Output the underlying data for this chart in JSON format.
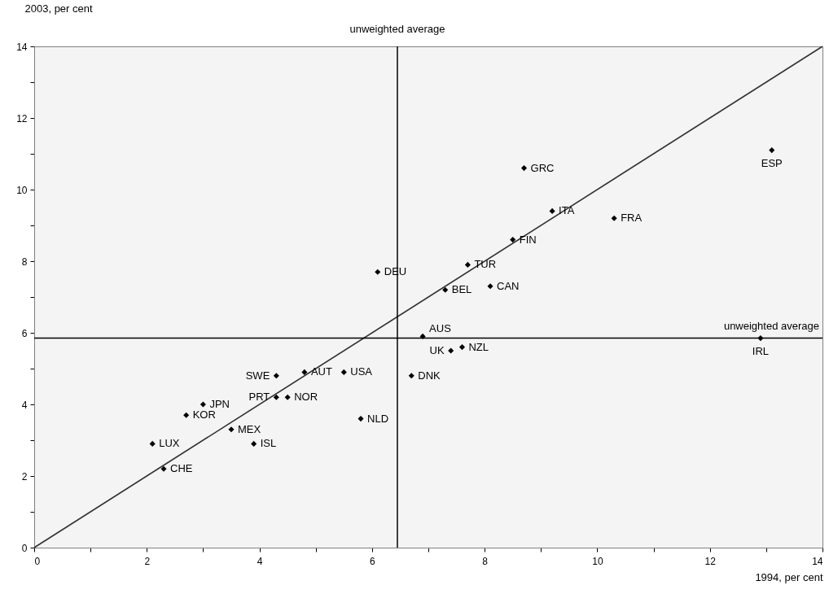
{
  "chart_data": {
    "type": "scatter",
    "xlabel": "1994, per cent",
    "ylabel": "2003, per cent",
    "xlim": [
      0,
      14
    ],
    "ylim": [
      0,
      14
    ],
    "xticks": [
      0,
      {
        "value": 1,
        "label": null
      },
      2,
      {
        "value": 3,
        "label": null
      },
      4,
      {
        "value": 5,
        "label": null
      },
      6,
      {
        "value": 7,
        "label": null
      },
      8,
      {
        "value": 9,
        "label": null
      },
      10,
      {
        "value": 11,
        "label": null
      },
      12,
      {
        "value": 13,
        "label": null
      },
      14
    ],
    "yticks": [
      0,
      {
        "value": 1,
        "label": null
      },
      2,
      {
        "value": 3,
        "label": null
      },
      4,
      {
        "value": 5,
        "label": null
      },
      6,
      {
        "value": 7,
        "label": null
      },
      8,
      {
        "value": 9,
        "label": null
      },
      10,
      {
        "value": 11,
        "label": null
      },
      12,
      {
        "value": 13,
        "label": null
      },
      14
    ],
    "grid": false,
    "series": [
      {
        "type": "scatter",
        "marker": "diamond",
        "color": "#000000",
        "x": [
          2.7,
          3.0,
          3.5,
          2.1,
          2.3,
          3.9,
          4.3,
          4.5,
          5.8,
          6.1,
          7.7,
          7.3,
          8.1,
          6.9,
          7.4,
          7.6,
          4.3,
          4.8,
          5.5,
          6.7,
          8.7,
          9.2,
          10.3,
          8.5,
          13.1,
          12.9
        ],
        "values": [
          3.7,
          4.0,
          3.3,
          2.9,
          2.2,
          2.9,
          4.2,
          4.2,
          3.6,
          7.7,
          7.9,
          7.2,
          7.3,
          5.9,
          5.5,
          5.6,
          4.8,
          4.9,
          4.9,
          4.8,
          10.6,
          9.4,
          9.2,
          8.6,
          11.1,
          5.85
        ]
      },
      {
        "type": "line",
        "color": "#333333",
        "x": [
          0,
          14
        ],
        "values": [
          0,
          14
        ]
      }
    ],
    "ref_lines": [
      {
        "axis": "x",
        "value": 6.45,
        "label": "unweighted average"
      },
      {
        "axis": "y",
        "value": 5.85,
        "label": "unweighted average"
      }
    ],
    "annotations": [
      {
        "text": "KOR",
        "x": 2.7,
        "y": 3.7
      },
      {
        "text": "JPN",
        "x": 3.0,
        "y": 4.0
      },
      {
        "text": "MEX",
        "x": 3.5,
        "y": 3.3
      },
      {
        "text": "LUX",
        "x": 2.1,
        "y": 2.9
      },
      {
        "text": "CHE",
        "x": 2.3,
        "y": 2.2
      },
      {
        "text": "ISL",
        "x": 3.9,
        "y": 2.9
      },
      {
        "text": "PRT",
        "x": 4.3,
        "y": 4.2
      },
      {
        "text": "NOR",
        "x": 4.5,
        "y": 4.2
      },
      {
        "text": "NLD",
        "x": 5.8,
        "y": 3.6
      },
      {
        "text": "DEU",
        "x": 6.1,
        "y": 7.7
      },
      {
        "text": "TUR",
        "x": 7.7,
        "y": 7.9
      },
      {
        "text": "BEL",
        "x": 7.3,
        "y": 7.2
      },
      {
        "text": "CAN",
        "x": 8.1,
        "y": 7.3
      },
      {
        "text": "AUS",
        "x": 6.9,
        "y": 5.9
      },
      {
        "text": "UK",
        "x": 7.4,
        "y": 5.5
      },
      {
        "text": "NZL",
        "x": 7.6,
        "y": 5.6
      },
      {
        "text": "SWE",
        "x": 4.3,
        "y": 4.8
      },
      {
        "text": "AUT",
        "x": 4.8,
        "y": 4.9
      },
      {
        "text": "USA",
        "x": 5.5,
        "y": 4.9
      },
      {
        "text": "DNK",
        "x": 6.7,
        "y": 4.8
      },
      {
        "text": "GRC",
        "x": 8.7,
        "y": 10.6
      },
      {
        "text": "ITA",
        "x": 9.2,
        "y": 9.4
      },
      {
        "text": "FRA",
        "x": 10.3,
        "y": 9.2
      },
      {
        "text": "FIN",
        "x": 8.5,
        "y": 8.6
      },
      {
        "text": "ESP",
        "x": 13.1,
        "y": 11.1
      },
      {
        "text": "IRL",
        "x": 12.9,
        "y": 5.85
      }
    ]
  }
}
